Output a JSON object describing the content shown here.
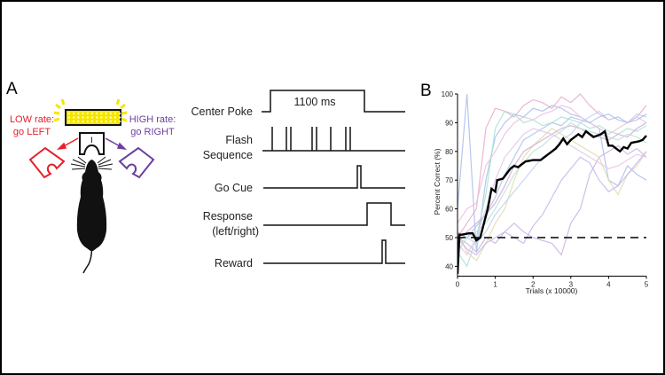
{
  "panel_a": {
    "label": "A",
    "low_rate": {
      "line1": "LOW rate:",
      "line2": "go LEFT",
      "color": "#e8202a"
    },
    "high_rate": {
      "line1": "HIGH rate:",
      "line2": "go RIGHT",
      "color": "#6b3fa0"
    },
    "light_color": "#f5e600",
    "center_port_mark": "I",
    "timing": {
      "duration_label": "1100 ms",
      "rows": [
        {
          "label_lines": [
            "Center Poke"
          ]
        },
        {
          "label_lines": [
            "Flash",
            "Sequence"
          ]
        },
        {
          "label_lines": [
            "Go Cue"
          ]
        },
        {
          "label_lines": [
            "Response",
            "(left/right)"
          ]
        },
        {
          "label_lines": [
            "Reward"
          ]
        }
      ]
    }
  },
  "chart_data": {
    "panel_label": "B",
    "type": "line",
    "xlabel": "Trials (x 10000)",
    "ylabel": "Percent Correct (%)",
    "xlim": [
      0,
      5
    ],
    "ylim": [
      37.5,
      100
    ],
    "xticks": [
      0,
      1,
      2,
      3,
      4,
      5
    ],
    "yticks": [
      40,
      50,
      60,
      70,
      80,
      90,
      100
    ],
    "chance_line": {
      "y": 50,
      "style": "dashed",
      "color": "#000000"
    },
    "mean": {
      "color": "#000000",
      "x": [
        0,
        0.05,
        0.1,
        0.3,
        0.4,
        0.5,
        0.6,
        0.7,
        0.8,
        0.9,
        1.0,
        1.05,
        1.2,
        1.4,
        1.5,
        1.6,
        1.8,
        2.0,
        2.2,
        2.4,
        2.6,
        2.7,
        2.8,
        2.9,
        3.0,
        3.2,
        3.3,
        3.4,
        3.5,
        3.6,
        3.8,
        3.9,
        4.0,
        4.1,
        4.3,
        4.4,
        4.5,
        4.6,
        4.8,
        4.9,
        5.0
      ],
      "y": [
        37,
        51,
        51,
        51.5,
        51.5,
        49,
        50,
        55,
        60,
        67,
        66,
        70,
        70.5,
        74,
        75,
        74.5,
        76.5,
        77,
        77,
        79,
        81,
        82.5,
        84.5,
        82.5,
        84,
        86,
        85,
        87,
        86,
        85,
        86,
        87,
        82,
        82,
        80,
        81.5,
        81,
        83,
        83.5,
        84,
        85.5
      ]
    },
    "individual_x": [
      0,
      0.25,
      0.5,
      0.75,
      1,
      1.25,
      1.5,
      1.75,
      2,
      2.25,
      2.5,
      2.75,
      3,
      3.25,
      3.5,
      3.75,
      4,
      4.25,
      4.5,
      4.75,
      5
    ],
    "individual": [
      {
        "color": "#e9a9cf",
        "y": [
          50,
          55,
          60,
          88,
          95,
          94,
          92,
          96,
          98,
          97,
          95,
          99,
          97,
          100,
          96,
          93,
          91,
          92,
          90,
          92,
          96
        ]
      },
      {
        "color": "#a9bdea",
        "y": [
          60,
          100,
          45,
          70,
          85,
          90,
          93,
          92,
          95,
          94,
          96,
          95,
          93,
          92,
          90,
          88,
          70,
          68,
          75,
          72,
          70
        ]
      },
      {
        "color": "#a8e0d4",
        "y": [
          45,
          40,
          50,
          65,
          88,
          94,
          93,
          90,
          91,
          89,
          90,
          92,
          91,
          90,
          88,
          89,
          87,
          86,
          88,
          87,
          89
        ]
      },
      {
        "color": "#c9b2e2",
        "y": [
          50,
          48,
          45,
          50,
          48,
          52,
          55,
          52,
          50,
          49,
          48,
          44,
          55,
          60,
          72,
          78,
          80,
          82,
          79,
          81,
          78
        ]
      },
      {
        "color": "#dedca9",
        "y": [
          52,
          45,
          42,
          48,
          55,
          60,
          70,
          78,
          82,
          85,
          88,
          86,
          84,
          82,
          80,
          78,
          70,
          65,
          72,
          75,
          80
        ]
      },
      {
        "color": "#d1a9d6",
        "y": [
          48,
          52,
          55,
          58,
          62,
          68,
          75,
          80,
          82,
          84,
          86,
          88,
          89,
          88,
          86,
          85,
          84,
          86,
          85,
          88,
          90
        ]
      },
      {
        "color": "#bcd0f2",
        "y": [
          50,
          50,
          48,
          52,
          58,
          62,
          66,
          70,
          74,
          78,
          80,
          84,
          86,
          90,
          92,
          94,
          91,
          92,
          90,
          93,
          92
        ]
      },
      {
        "color": "#b8e2cf",
        "y": [
          45,
          50,
          52,
          55,
          60,
          66,
          72,
          76,
          80,
          82,
          85,
          87,
          90,
          88,
          87,
          86,
          85,
          84,
          86,
          85,
          83
        ]
      },
      {
        "color": "#e6bfdc",
        "y": [
          55,
          60,
          62,
          75,
          80,
          86,
          90,
          92,
          91,
          93,
          94,
          96,
          95,
          92,
          90,
          88,
          86,
          88,
          90,
          92,
          90
        ]
      },
      {
        "color": "#c6b4e8",
        "y": [
          50,
          46,
          44,
          48,
          50,
          52,
          50,
          48,
          54,
          58,
          64,
          70,
          74,
          78,
          76,
          70,
          66,
          68,
          72,
          76,
          80
        ]
      },
      {
        "color": "#a9c3e8",
        "y": [
          52,
          50,
          54,
          58,
          64,
          72,
          78,
          84,
          86,
          88,
          90,
          89,
          92,
          91,
          90,
          92,
          93,
          91,
          90,
          91,
          93
        ]
      },
      {
        "color": "#dfc6e8",
        "y": [
          48,
          44,
          50,
          60,
          70,
          78,
          82,
          86,
          88,
          87,
          86,
          84,
          82,
          80,
          78,
          76,
          74,
          75,
          77,
          79,
          78
        ]
      }
    ]
  }
}
